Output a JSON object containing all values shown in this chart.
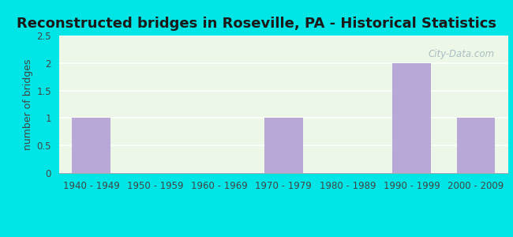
{
  "title": "Reconstructed bridges in Roseville, PA - Historical Statistics",
  "categories": [
    "1940 - 1949",
    "1950 - 1959",
    "1960 - 1969",
    "1970 - 1979",
    "1980 - 1989",
    "1990 - 1999",
    "2000 - 2009"
  ],
  "values": [
    1,
    0,
    0,
    1,
    0,
    2,
    1
  ],
  "bar_color": "#b8a8d8",
  "ylabel": "number of bridges",
  "ylim": [
    0,
    2.5
  ],
  "yticks": [
    0,
    0.5,
    1,
    1.5,
    2,
    2.5
  ],
  "background_outer": "#00e5e5",
  "background_plot": "#edf7e8",
  "title_fontsize": 13,
  "axis_label_fontsize": 9,
  "tick_fontsize": 8.5,
  "watermark_text": "City-Data.com"
}
